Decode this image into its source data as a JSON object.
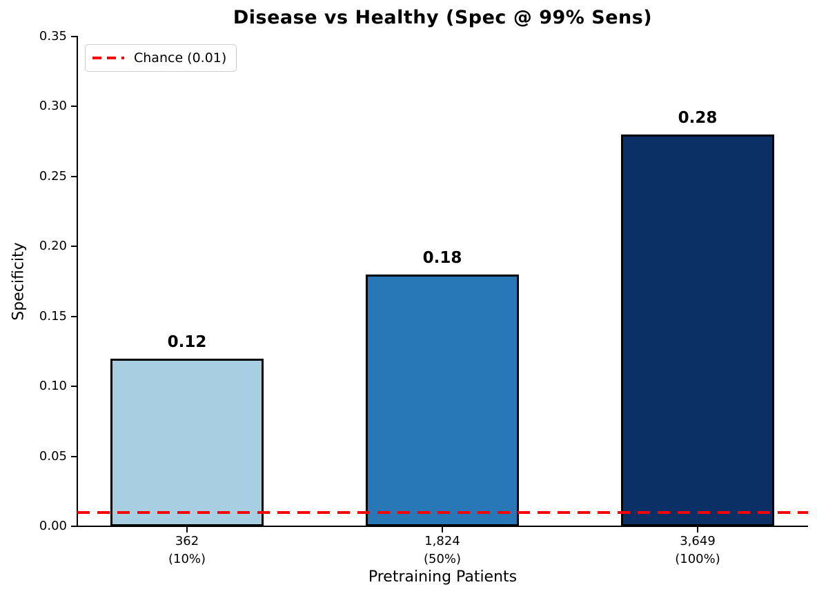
{
  "chart_data": {
    "type": "bar",
    "title": "Disease vs Healthy (Spec @ 99% Sens)",
    "xlabel": "Pretraining Patients",
    "ylabel": "Specificity",
    "ylim": [
      0,
      0.35
    ],
    "yticks": [
      "0.00",
      "0.05",
      "0.10",
      "0.15",
      "0.20",
      "0.25",
      "0.30",
      "0.35"
    ],
    "ytick_values": [
      0,
      0.05,
      0.1,
      0.15,
      0.2,
      0.25,
      0.3,
      0.35
    ],
    "categories": [
      "362\n(10%)",
      "1,824\n(50%)",
      "3,649\n(100%)"
    ],
    "values": [
      0.12,
      0.18,
      0.28
    ],
    "bar_labels": [
      "0.12",
      "0.18",
      "0.28"
    ],
    "bar_colors": [
      "#a8cee2",
      "#2878b8",
      "#0b3066"
    ],
    "bar_edge_color": "#000000",
    "grid": false,
    "legend_position": "upper left",
    "chance_line": {
      "value": 0.01,
      "color": "#ff0000",
      "style": "dashed",
      "label": "Chance (0.01)"
    }
  }
}
